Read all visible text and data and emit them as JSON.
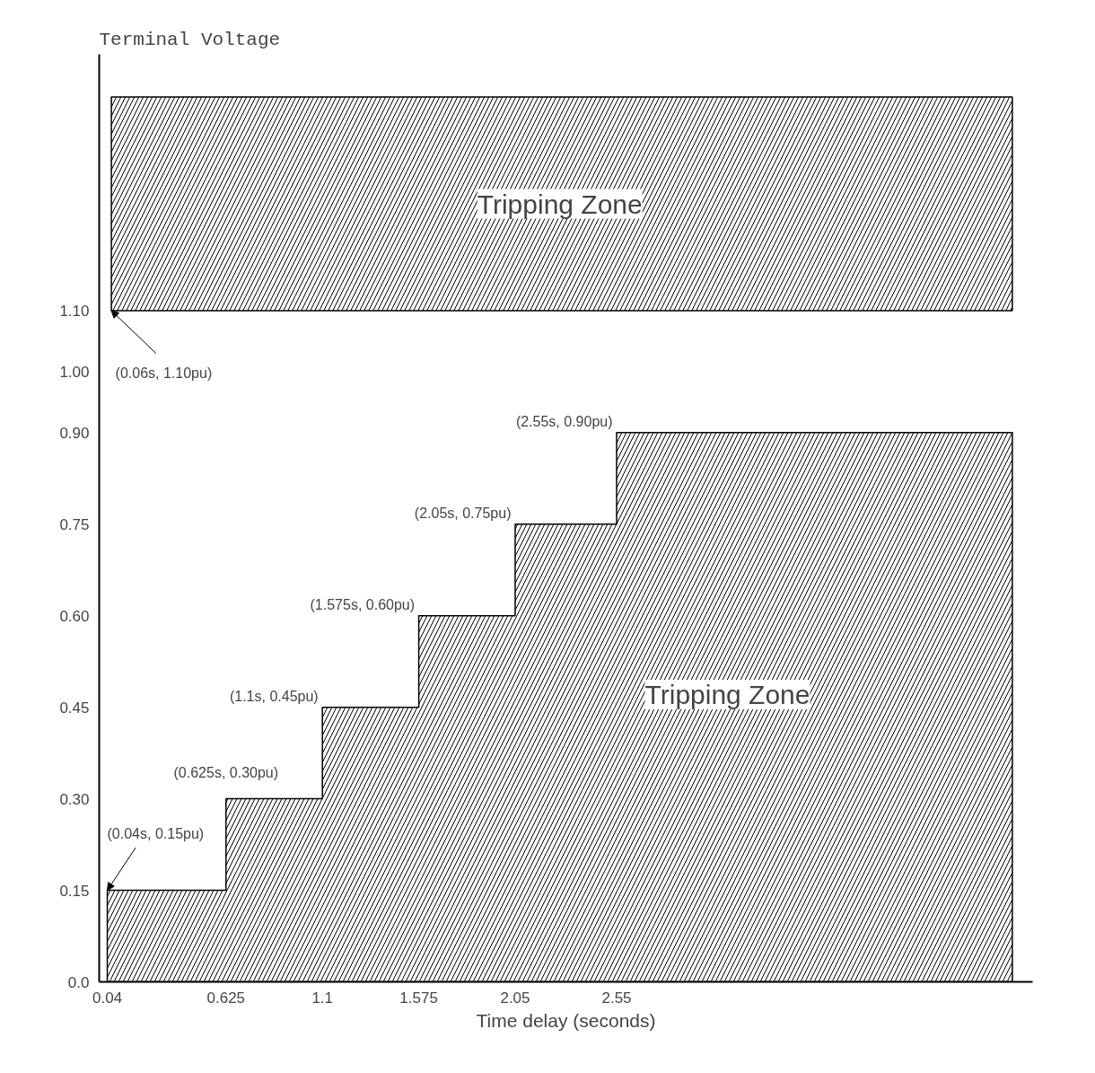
{
  "chart_data": {
    "type": "area",
    "ylabel": "Terminal Voltage",
    "xlabel": "Time delay (seconds)",
    "x": [
      0.04,
      0.625,
      0.625,
      1.1,
      1.1,
      1.575,
      1.575,
      2.05,
      2.05,
      2.55,
      2.55,
      4.5
    ],
    "series": [
      {
        "color": "#000000",
        "values": [
          0.15,
          0.15,
          0.3,
          0.3,
          0.45,
          0.45,
          0.6,
          0.6,
          0.75,
          0.75,
          0.9,
          0.9
        ]
      }
    ],
    "xlim": [
      0,
      4.6
    ],
    "ylim": [
      0,
      1.52
    ],
    "xticks": [
      0.04,
      0.625,
      1.1,
      1.575,
      2.05,
      2.55
    ],
    "yticks": [
      {
        "value": 0,
        "label": "0.0"
      },
      0.15,
      {
        "value": 0.3,
        "label": "0.30"
      },
      0.45,
      {
        "value": 0.6,
        "label": "0.60"
      },
      0.75,
      {
        "value": 0.9,
        "label": "0.90"
      },
      {
        "value": 1.0,
        "label": "1.00"
      },
      {
        "value": 1.1,
        "label": "1.10"
      }
    ],
    "bands": [
      {
        "axis": "y",
        "from": 1.1,
        "to": 1.45,
        "label": "Tripping Zone",
        "color": "#000000"
      }
    ],
    "annotations": [
      {
        "text": "(0.06s, 1.10pu)",
        "x": 0.06,
        "y": 1.1
      },
      {
        "text": "(0.04s, 0.15pu)",
        "x": 0.04,
        "y": 0.15
      },
      {
        "text": "(0.625s, 0.30pu)",
        "x": 0.625,
        "y": 0.3
      },
      {
        "text": "(1.1s, 0.45pu)",
        "x": 1.1,
        "y": 0.45
      },
      {
        "text": "(1.575s, 0.60pu)",
        "x": 1.575,
        "y": 0.6
      },
      {
        "text": "(2.05s, 0.75pu)",
        "x": 2.05,
        "y": 0.75
      },
      {
        "text": "(2.55s, 0.90pu)",
        "x": 2.55,
        "y": 0.9
      },
      "Tripping Zone"
    ],
    "grid": false
  }
}
